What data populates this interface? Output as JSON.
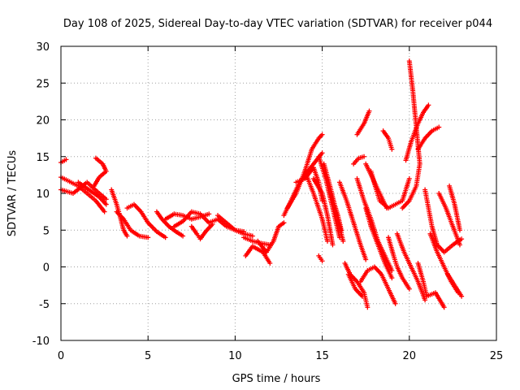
{
  "chart_data": {
    "type": "scatter",
    "title": "Day 108 of 2025, Sidereal Day-to-day VTEC variation (SDTVAR) for receiver p044",
    "xlabel": "GPS time / hours",
    "ylabel": "SDTVAR / TECUs",
    "xlim": [
      0,
      25
    ],
    "ylim": [
      -10,
      30
    ],
    "xticks": [
      "0",
      "5",
      "10",
      "15",
      "20",
      "25"
    ],
    "yticks": [
      "-10",
      "-5",
      "0",
      "5",
      "10",
      "15",
      "20",
      "25",
      "30"
    ],
    "grid": true,
    "marker": "plus",
    "color": "#ff0000",
    "tracks": [
      [
        [
          0.0,
          12.2
        ],
        [
          0.5,
          11.6
        ],
        [
          1.0,
          11.0
        ],
        [
          1.5,
          10.0
        ],
        [
          2.0,
          9.0
        ],
        [
          2.5,
          7.5
        ]
      ],
      [
        [
          0.0,
          10.5
        ],
        [
          0.7,
          10.0
        ],
        [
          1.5,
          11.5
        ],
        [
          2.2,
          10.0
        ],
        [
          2.6,
          9.2
        ]
      ],
      [
        [
          0.0,
          14.2
        ],
        [
          0.3,
          14.6
        ]
      ],
      [
        [
          1.0,
          11.5
        ],
        [
          1.6,
          10.5
        ],
        [
          2.2,
          9.5
        ],
        [
          2.6,
          8.5
        ]
      ],
      [
        [
          2.0,
          14.8
        ],
        [
          2.4,
          14.0
        ],
        [
          2.6,
          13.0
        ],
        [
          2.2,
          12.2
        ],
        [
          1.9,
          11.0
        ]
      ],
      [
        [
          2.9,
          10.5
        ],
        [
          3.2,
          8.5
        ],
        [
          3.4,
          6.8
        ],
        [
          3.6,
          5.0
        ],
        [
          3.8,
          4.2
        ]
      ],
      [
        [
          3.2,
          7.5
        ],
        [
          3.6,
          6.5
        ],
        [
          4.0,
          5.0
        ],
        [
          4.5,
          4.2
        ],
        [
          5.0,
          4.0
        ]
      ],
      [
        [
          3.8,
          8.0
        ],
        [
          4.2,
          8.5
        ],
        [
          4.6,
          7.5
        ],
        [
          5.0,
          6.0
        ],
        [
          5.5,
          4.8
        ],
        [
          6.0,
          4.0
        ]
      ],
      [
        [
          5.5,
          7.5
        ],
        [
          5.8,
          6.5
        ],
        [
          6.2,
          5.5
        ],
        [
          6.6,
          4.8
        ],
        [
          7.0,
          4.2
        ]
      ],
      [
        [
          6.0,
          6.5
        ],
        [
          6.5,
          7.2
        ],
        [
          7.0,
          7.0
        ],
        [
          7.5,
          6.5
        ],
        [
          8.0,
          6.8
        ],
        [
          8.5,
          7.2
        ]
      ],
      [
        [
          6.5,
          5.5
        ],
        [
          7.0,
          6.2
        ],
        [
          7.5,
          7.5
        ],
        [
          8.0,
          7.2
        ],
        [
          8.5,
          6.0
        ]
      ],
      [
        [
          7.5,
          5.5
        ],
        [
          7.8,
          4.5
        ],
        [
          8.0,
          3.8
        ],
        [
          8.3,
          4.8
        ],
        [
          8.7,
          5.8
        ]
      ],
      [
        [
          8.5,
          6.0
        ],
        [
          9.0,
          6.5
        ],
        [
          9.5,
          5.5
        ],
        [
          10.0,
          5.0
        ],
        [
          10.5,
          4.8
        ]
      ],
      [
        [
          9.0,
          7.0
        ],
        [
          9.5,
          6.0
        ],
        [
          10.0,
          5.0
        ],
        [
          10.5,
          4.5
        ],
        [
          11.0,
          4.2
        ]
      ],
      [
        [
          10.5,
          4.0
        ],
        [
          11.0,
          3.5
        ],
        [
          11.5,
          3.2
        ],
        [
          12.0,
          3.0
        ]
      ],
      [
        [
          10.6,
          1.5
        ],
        [
          11.0,
          2.8
        ],
        [
          11.6,
          2.0
        ],
        [
          12.0,
          0.5
        ]
      ],
      [
        [
          11.3,
          3.5
        ],
        [
          11.8,
          2.0
        ],
        [
          12.2,
          3.5
        ],
        [
          12.5,
          5.5
        ],
        [
          12.8,
          6.0
        ]
      ],
      [
        [
          12.8,
          7.0
        ],
        [
          13.2,
          9.0
        ],
        [
          13.6,
          11.0
        ],
        [
          14.0,
          12.5
        ],
        [
          14.5,
          14.0
        ],
        [
          15.0,
          15.5
        ]
      ],
      [
        [
          13.0,
          8.0
        ],
        [
          13.5,
          10.0
        ],
        [
          14.0,
          13.0
        ],
        [
          14.4,
          16.0
        ],
        [
          14.8,
          17.5
        ],
        [
          15.0,
          18.0
        ]
      ],
      [
        [
          13.5,
          11.5
        ],
        [
          14.0,
          12.0
        ],
        [
          14.5,
          13.5
        ],
        [
          14.8,
          11.5
        ],
        [
          15.0,
          9.0
        ]
      ],
      [
        [
          14.0,
          13.0
        ],
        [
          14.5,
          10.0
        ],
        [
          15.0,
          6.5
        ],
        [
          15.3,
          3.5
        ]
      ],
      [
        [
          14.5,
          12.0
        ],
        [
          15.0,
          10.0
        ],
        [
          15.3,
          7.0
        ],
        [
          15.6,
          3.0
        ]
      ],
      [
        [
          14.8,
          15.0
        ],
        [
          15.2,
          12.0
        ],
        [
          15.6,
          8.0
        ],
        [
          16.0,
          4.0
        ]
      ],
      [
        [
          15.1,
          14.0
        ],
        [
          15.5,
          10.5
        ],
        [
          15.9,
          6.5
        ],
        [
          16.2,
          3.5
        ]
      ],
      [
        [
          15.5,
          10.0
        ],
        [
          15.9,
          7.0
        ],
        [
          16.1,
          5.0
        ]
      ],
      [
        [
          14.8,
          1.5
        ],
        [
          15.0,
          0.8
        ]
      ],
      [
        [
          16.0,
          11.5
        ],
        [
          16.4,
          9.0
        ],
        [
          16.8,
          6.0
        ],
        [
          17.2,
          3.0
        ],
        [
          17.5,
          1.0
        ]
      ],
      [
        [
          16.8,
          14.0
        ],
        [
          17.1,
          14.8
        ],
        [
          17.4,
          15.0
        ]
      ],
      [
        [
          16.3,
          0.5
        ],
        [
          16.6,
          -1.0
        ],
        [
          17.0,
          -2.0
        ],
        [
          17.4,
          -3.5
        ],
        [
          17.6,
          -5.5
        ]
      ],
      [
        [
          16.5,
          -1.0
        ],
        [
          16.9,
          -3.0
        ],
        [
          17.3,
          -4.0
        ]
      ],
      [
        [
          17.0,
          12.0
        ],
        [
          17.4,
          9.0
        ],
        [
          17.8,
          6.5
        ],
        [
          18.2,
          3.5
        ],
        [
          18.6,
          1.5
        ],
        [
          19.0,
          -0.5
        ]
      ],
      [
        [
          17.5,
          8.0
        ],
        [
          17.8,
          5.5
        ],
        [
          18.2,
          3.0
        ],
        [
          18.6,
          0.5
        ],
        [
          19.0,
          -1.5
        ]
      ],
      [
        [
          17.2,
          -2.0
        ],
        [
          17.6,
          -0.5
        ],
        [
          18.0,
          0.0
        ],
        [
          18.4,
          -1.0
        ],
        [
          18.8,
          -3.0
        ],
        [
          19.2,
          -5.0
        ]
      ],
      [
        [
          17.0,
          18.0
        ],
        [
          17.4,
          19.5
        ],
        [
          17.7,
          21.2
        ]
      ],
      [
        [
          17.5,
          14.0
        ],
        [
          17.9,
          12.0
        ],
        [
          18.3,
          10.0
        ],
        [
          18.7,
          8.0
        ]
      ],
      [
        [
          18.5,
          18.5
        ],
        [
          18.8,
          17.5
        ],
        [
          19.0,
          16.0
        ]
      ],
      [
        [
          17.8,
          13.0
        ],
        [
          18.1,
          10.5
        ],
        [
          18.3,
          9.0
        ],
        [
          18.8,
          8.0
        ],
        [
          19.2,
          8.5
        ],
        [
          19.6,
          9.0
        ],
        [
          20.0,
          12.0
        ]
      ],
      [
        [
          18.8,
          4.0
        ],
        [
          19.1,
          1.5
        ],
        [
          19.3,
          0.0
        ],
        [
          19.6,
          -1.5
        ],
        [
          20.0,
          -3.0
        ]
      ],
      [
        [
          19.3,
          4.5
        ],
        [
          19.7,
          2.0
        ],
        [
          20.1,
          0.0
        ],
        [
          20.5,
          -2.0
        ],
        [
          20.9,
          -4.5
        ]
      ],
      [
        [
          20.0,
          28.0
        ],
        [
          20.2,
          24.0
        ],
        [
          20.4,
          19.0
        ],
        [
          20.6,
          14.0
        ],
        [
          20.4,
          11.0
        ],
        [
          20.0,
          9.0
        ],
        [
          19.6,
          8.0
        ]
      ],
      [
        [
          19.8,
          14.5
        ],
        [
          20.1,
          17.0
        ],
        [
          20.5,
          19.5
        ],
        [
          20.8,
          21.0
        ],
        [
          21.1,
          22.0
        ]
      ],
      [
        [
          20.5,
          16.0
        ],
        [
          20.9,
          17.5
        ],
        [
          21.3,
          18.5
        ],
        [
          21.7,
          19.0
        ]
      ],
      [
        [
          20.9,
          10.5
        ],
        [
          21.1,
          8.0
        ],
        [
          21.3,
          5.5
        ],
        [
          21.6,
          3.0
        ],
        [
          22.0,
          2.0
        ],
        [
          22.5,
          3.0
        ],
        [
          23.0,
          3.8
        ]
      ],
      [
        [
          21.2,
          4.5
        ],
        [
          21.6,
          2.0
        ],
        [
          22.0,
          0.0
        ],
        [
          22.4,
          -2.0
        ],
        [
          22.8,
          -3.5
        ]
      ],
      [
        [
          20.5,
          0.5
        ],
        [
          20.8,
          -2.0
        ],
        [
          21.0,
          -4.0
        ],
        [
          21.5,
          -3.5
        ],
        [
          22.0,
          -5.5
        ]
      ],
      [
        [
          22.3,
          11.0
        ],
        [
          22.6,
          8.5
        ],
        [
          22.9,
          5.0
        ]
      ],
      [
        [
          21.7,
          10.0
        ],
        [
          22.1,
          8.0
        ],
        [
          22.5,
          5.5
        ],
        [
          22.9,
          3.0
        ]
      ],
      [
        [
          22.2,
          -1.0
        ],
        [
          22.6,
          -2.5
        ],
        [
          23.0,
          -4.0
        ]
      ]
    ]
  }
}
